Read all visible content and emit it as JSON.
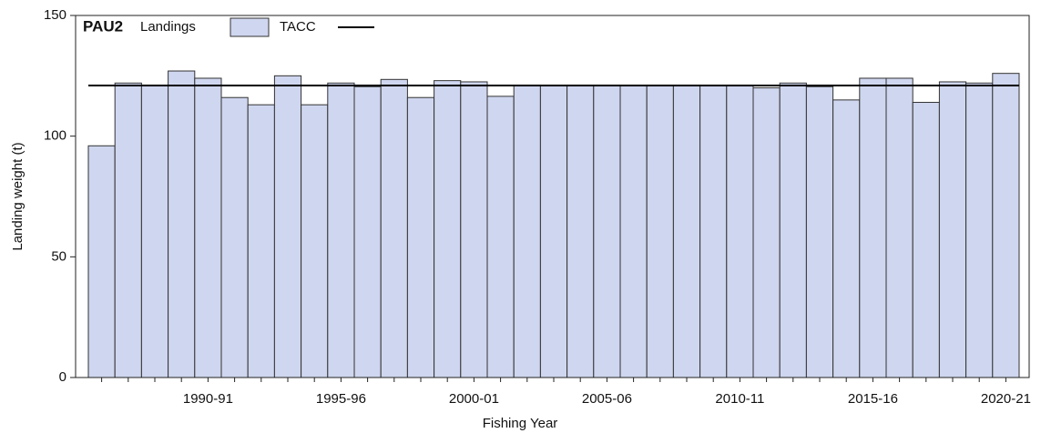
{
  "chart_data": {
    "type": "bar",
    "title": "PAU2",
    "x_label": "Fishing Year",
    "y_label": "Landing weight (t)",
    "categories": [
      null,
      null,
      null,
      null,
      "1990-91",
      null,
      null,
      null,
      null,
      "1995-96",
      null,
      null,
      null,
      null,
      "2000-01",
      null,
      null,
      null,
      null,
      "2005-06",
      null,
      null,
      null,
      null,
      "2010-11",
      null,
      null,
      null,
      null,
      "2015-16",
      null,
      null,
      null,
      null,
      "2020-21"
    ],
    "series": [
      {
        "name": "Landings",
        "color": "#cfd6ef",
        "values": [
          96,
          122,
          121,
          127,
          124,
          116,
          113,
          125,
          113,
          122,
          120.5,
          123.5,
          116,
          123,
          122.5,
          116.5,
          121,
          121,
          121,
          121,
          121,
          121,
          121,
          121,
          121,
          120,
          122,
          120.5,
          115,
          124,
          124,
          114,
          122.5,
          122,
          126
        ]
      }
    ],
    "reference_line": {
      "name": "TACC",
      "value": 121,
      "color": "#000000"
    },
    "ylim": [
      0,
      150
    ],
    "yticks": [
      0,
      50,
      100,
      150
    ],
    "legend": "top-left"
  }
}
